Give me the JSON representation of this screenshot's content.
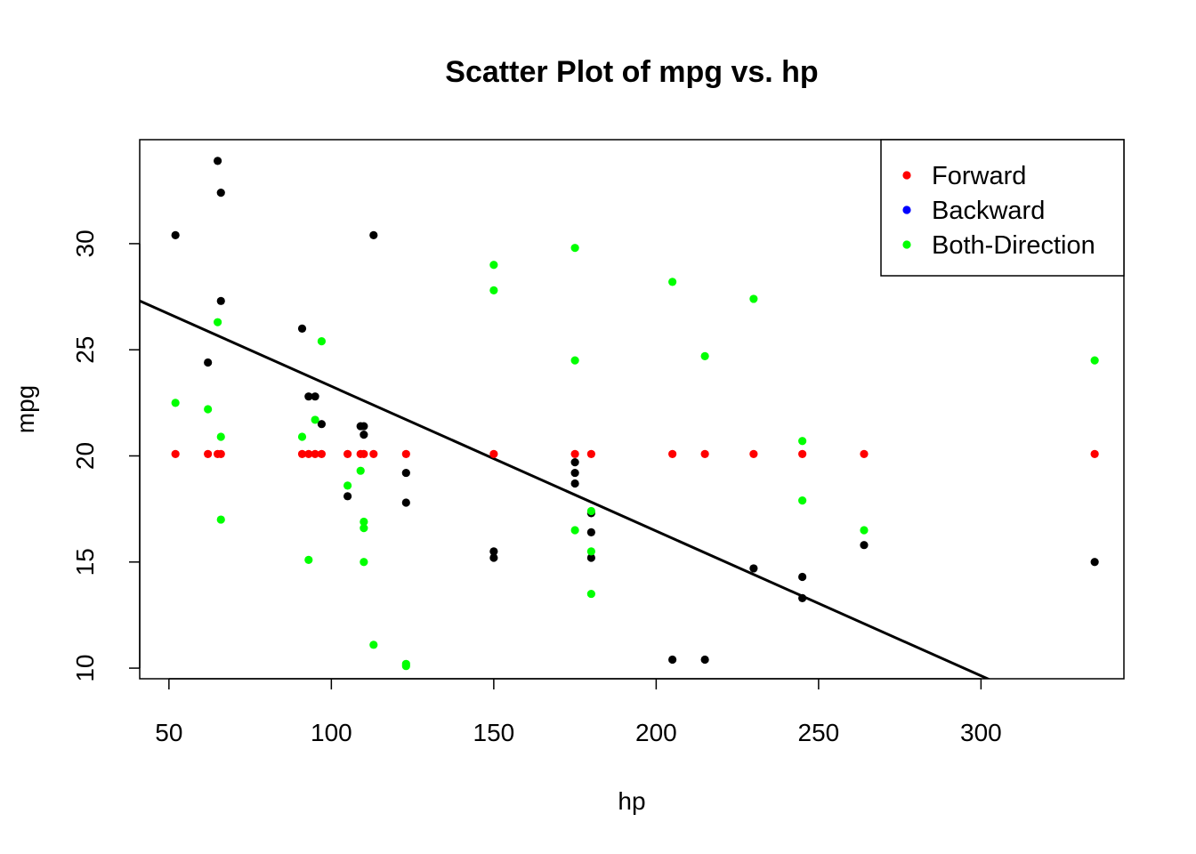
{
  "chart_data": {
    "type": "scatter",
    "title": "Scatter Plot of mpg vs. hp",
    "xlabel": "hp",
    "ylabel": "mpg",
    "xlim": [
      41,
      344
    ],
    "ylim": [
      9.5,
      34.9
    ],
    "x_ticks": [
      50,
      100,
      150,
      200,
      250,
      300
    ],
    "y_ticks": [
      10,
      15,
      20,
      25,
      30
    ],
    "grid": false,
    "legend_position": "top-right",
    "legend": [
      {
        "label": "Forward",
        "color": "#ff0000"
      },
      {
        "label": "Backward",
        "color": "#0000ff"
      },
      {
        "label": "Both-Direction",
        "color": "#00ff00"
      }
    ],
    "series": [
      {
        "color": "#000000",
        "points": [
          [
            52,
            30.4
          ],
          [
            62,
            24.4
          ],
          [
            65,
            33.9
          ],
          [
            66,
            32.4
          ],
          [
            66,
            27.3
          ],
          [
            91,
            26.0
          ],
          [
            93,
            22.8
          ],
          [
            95,
            22.8
          ],
          [
            97,
            21.5
          ],
          [
            105,
            18.1
          ],
          [
            109,
            21.4
          ],
          [
            110,
            21.4
          ],
          [
            110,
            21.0
          ],
          [
            113,
            30.4
          ],
          [
            123,
            19.2
          ],
          [
            123,
            17.8
          ],
          [
            150,
            15.5
          ],
          [
            150,
            15.2
          ],
          [
            175,
            19.7
          ],
          [
            175,
            19.2
          ],
          [
            175,
            18.7
          ],
          [
            180,
            17.3
          ],
          [
            180,
            16.4
          ],
          [
            180,
            15.2
          ],
          [
            205,
            10.4
          ],
          [
            215,
            10.4
          ],
          [
            230,
            14.7
          ],
          [
            245,
            14.3
          ],
          [
            245,
            13.3
          ],
          [
            264,
            15.8
          ],
          [
            335,
            15.0
          ]
        ]
      },
      {
        "name": "Forward",
        "color": "#ff0000",
        "points": [
          [
            52,
            20.09
          ],
          [
            62,
            20.09
          ],
          [
            65,
            20.09
          ],
          [
            66,
            20.09
          ],
          [
            91,
            20.09
          ],
          [
            93,
            20.09
          ],
          [
            95,
            20.09
          ],
          [
            97,
            20.09
          ],
          [
            105,
            20.09
          ],
          [
            109,
            20.09
          ],
          [
            110,
            20.09
          ],
          [
            113,
            20.09
          ],
          [
            123,
            20.09
          ],
          [
            150,
            20.09
          ],
          [
            175,
            20.09
          ],
          [
            180,
            20.09
          ],
          [
            205,
            20.09
          ],
          [
            215,
            20.09
          ],
          [
            230,
            20.09
          ],
          [
            245,
            20.09
          ],
          [
            264,
            20.09
          ],
          [
            335,
            20.09
          ]
        ]
      },
      {
        "name": "Backward",
        "color": "#0000ff",
        "points": []
      },
      {
        "name": "Both-Direction",
        "color": "#00ff00",
        "points": [
          [
            52,
            22.5
          ],
          [
            62,
            22.2
          ],
          [
            65,
            26.3
          ],
          [
            66,
            20.9
          ],
          [
            66,
            17.0
          ],
          [
            91,
            20.9
          ],
          [
            93,
            15.1
          ],
          [
            95,
            21.7
          ],
          [
            97,
            25.4
          ],
          [
            105,
            18.6
          ],
          [
            109,
            19.3
          ],
          [
            110,
            16.9
          ],
          [
            110,
            16.6
          ],
          [
            110,
            15.0
          ],
          [
            113,
            11.1
          ],
          [
            123,
            10.2
          ],
          [
            123,
            10.1
          ],
          [
            150,
            29.0
          ],
          [
            150,
            27.8
          ],
          [
            175,
            29.8
          ],
          [
            175,
            24.5
          ],
          [
            175,
            16.5
          ],
          [
            180,
            17.4
          ],
          [
            180,
            15.5
          ],
          [
            180,
            13.5
          ],
          [
            205,
            28.2
          ],
          [
            215,
            24.7
          ],
          [
            230,
            27.4
          ],
          [
            245,
            20.7
          ],
          [
            245,
            17.9
          ],
          [
            264,
            16.5
          ],
          [
            335,
            24.5
          ]
        ]
      }
    ],
    "regression_line": {
      "intercept": 30.1,
      "slope": -0.0682
    }
  }
}
